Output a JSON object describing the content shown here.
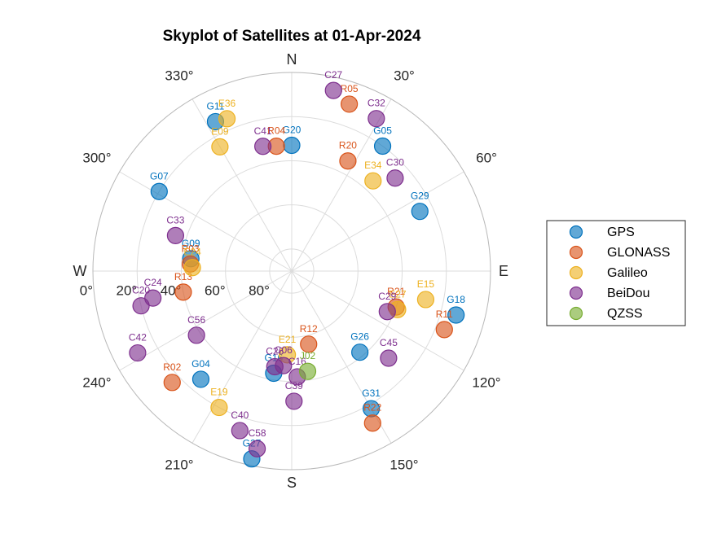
{
  "chart_data": {
    "type": "scatter",
    "subtype": "polar-skyplot",
    "title": "Skyplot of Satellites at 01-Apr-2024",
    "compass": [
      "N",
      "E",
      "S",
      "W"
    ],
    "azimuth_tick_labels": [
      "30°",
      "60°",
      "120°",
      "150°",
      "210°",
      "240°",
      "300°",
      "330°"
    ],
    "elevation_tick_labels": [
      "0°",
      "20°",
      "40°",
      "60°",
      "80°"
    ],
    "elevation_range": [
      0,
      90
    ],
    "grid": true,
    "legend_position": "right",
    "colors": {
      "GPS": "#0072BD",
      "GLONASS": "#D95319",
      "Galileo": "#EDB120",
      "BeiDou": "#7E2F8E",
      "QZSS": "#77AC30"
    },
    "series": [
      {
        "name": "GPS",
        "points": [
          {
            "label": "G11",
            "az": 333,
            "el": 14
          },
          {
            "label": "G20",
            "az": 0,
            "el": 33
          },
          {
            "label": "G05",
            "az": 36,
            "el": 20
          },
          {
            "label": "G07",
            "az": 301,
            "el": 20
          },
          {
            "label": "G29",
            "az": 65,
            "el": 26
          },
          {
            "label": "G09",
            "az": 277,
            "el": 44
          },
          {
            "label": "G18",
            "az": 105,
            "el": 13
          },
          {
            "label": "G26",
            "az": 140,
            "el": 42
          },
          {
            "label": "G16",
            "az": 190,
            "el": 43
          },
          {
            "label": "G04",
            "az": 220,
            "el": 26
          },
          {
            "label": "G31",
            "az": 150,
            "el": 18
          },
          {
            "label": "G27",
            "az": 192,
            "el": 3
          }
        ]
      },
      {
        "name": "GLONASS",
        "points": [
          {
            "label": "R05",
            "az": 19,
            "el": 10
          },
          {
            "label": "R04",
            "az": 353,
            "el": 33
          },
          {
            "label": "R20",
            "az": 27,
            "el": 34
          },
          {
            "label": "R03",
            "az": 274,
            "el": 44
          },
          {
            "label": "R13",
            "az": 259,
            "el": 40
          },
          {
            "label": "R12",
            "az": 167,
            "el": 56
          },
          {
            "label": "R21",
            "az": 109,
            "el": 40
          },
          {
            "label": "R11",
            "az": 111,
            "el": 16
          },
          {
            "label": "R02",
            "az": 227,
            "el": 16
          },
          {
            "label": "R22",
            "az": 152,
            "el": 12
          }
        ]
      },
      {
        "name": "Galileo",
        "points": [
          {
            "label": "E36",
            "az": 337,
            "el": 15
          },
          {
            "label": "E09",
            "az": 330,
            "el": 25
          },
          {
            "label": "E34",
            "az": 42,
            "el": 35
          },
          {
            "label": "E24",
            "az": 272,
            "el": 45
          },
          {
            "label": "E15",
            "az": 102,
            "el": 28
          },
          {
            "label": "E27",
            "az": 110,
            "el": 39
          },
          {
            "label": "E21",
            "az": 183,
            "el": 52
          },
          {
            "label": "E19",
            "az": 208,
            "el": 20
          }
        ]
      },
      {
        "name": "BeiDou",
        "points": [
          {
            "label": "C27",
            "az": 13,
            "el": 6
          },
          {
            "label": "C32",
            "az": 29,
            "el": 11
          },
          {
            "label": "C41",
            "az": 347,
            "el": 32
          },
          {
            "label": "C30",
            "az": 48,
            "el": 27
          },
          {
            "label": "C33",
            "az": 287,
            "el": 35
          },
          {
            "label": "C24",
            "az": 259,
            "el": 26
          },
          {
            "label": "C20",
            "az": 257,
            "el": 20
          },
          {
            "label": "C56",
            "az": 236,
            "el": 38
          },
          {
            "label": "C29",
            "az": 113,
            "el": 43
          },
          {
            "label": "C26",
            "az": 190,
            "el": 46
          },
          {
            "label": "C06",
            "az": 185,
            "el": 47
          },
          {
            "label": "C16",
            "az": 177,
            "el": 42
          },
          {
            "label": "C42",
            "az": 242,
            "el": 11
          },
          {
            "label": "C45",
            "az": 132,
            "el": 31
          },
          {
            "label": "C39",
            "az": 179,
            "el": 31
          },
          {
            "label": "C40",
            "az": 198,
            "el": 14
          },
          {
            "label": "C58",
            "az": 191,
            "el": 8
          }
        ]
      },
      {
        "name": "QZSS",
        "points": [
          {
            "label": "J02",
            "az": 171,
            "el": 44
          }
        ]
      }
    ]
  }
}
